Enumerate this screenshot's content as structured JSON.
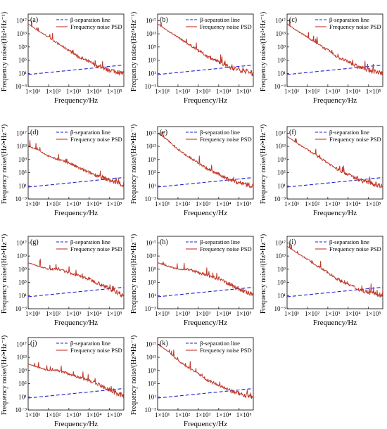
{
  "chart_data": [
    {
      "type": "line",
      "label": "(a)",
      "xlabel": "Frequency/Hz",
      "ylabel": "Frequency noise/(Hz²•Hz⁻¹)",
      "x_scale": "log",
      "y_scale": "log",
      "xlim": [
        10,
        500000
      ],
      "ylim": [
        0.001,
        1e+19
      ],
      "x_ticks": [
        "1×10¹",
        "1×10²",
        "1×10³",
        "1×10⁴",
        "1×10⁵"
      ],
      "y_ticks": [
        "10⁻³",
        "10¹",
        "10⁵",
        "10⁹",
        "10¹³",
        "10¹⁷"
      ],
      "legend": "top",
      "series": [
        {
          "name": "β-separation line",
          "color": "#2020d0",
          "style": "dashed",
          "x": [
            10,
            500000
          ],
          "y": [
            4.4,
            3400
          ]
        },
        {
          "name": "Frequency noise PSD",
          "color": "#c0392b",
          "style": "solid",
          "x": [
            10,
            30,
            100,
            300,
            1000,
            3000,
            10000,
            30000,
            100000,
            300000,
            500000
          ],
          "y": [
            1e+16,
            100000000000000.0,
            1000000000000.0,
            10000000000.0,
            100000000.0,
            1000000.0,
            30000.0,
            1000.0,
            100,
            20,
            10
          ]
        }
      ]
    },
    {
      "type": "line",
      "label": "(b)",
      "xlabel": "Frequency/Hz",
      "ylabel": "Frequency noise/(Hz²•Hz⁻¹)",
      "x_scale": "log",
      "y_scale": "log",
      "xlim": [
        10,
        500000
      ],
      "ylim": [
        0.001,
        1e+19
      ],
      "x_ticks": [
        "1×10¹",
        "1×10²",
        "1×10³",
        "1×10⁴",
        "1×10⁵"
      ],
      "y_ticks": [
        "10⁻³",
        "10¹",
        "10⁵",
        "10⁹",
        "10¹³",
        "10¹⁷"
      ],
      "legend": "top",
      "series": [
        {
          "name": "β-separation line",
          "color": "#2020d0",
          "style": "dashed",
          "x": [
            10,
            500000
          ],
          "y": [
            4.4,
            3400
          ]
        },
        {
          "name": "Frequency noise PSD",
          "color": "#c0392b",
          "style": "solid",
          "x": [
            10,
            30,
            100,
            300,
            1000,
            3000,
            10000,
            30000,
            100000,
            300000,
            500000
          ],
          "y": [
            1e+16,
            100000000000000.0,
            1000000000000.0,
            10000000000.0,
            100000000.0,
            1000000.0,
            30000.0,
            1000.0,
            100,
            20,
            10
          ]
        }
      ]
    },
    {
      "type": "line",
      "label": "(c)",
      "xlabel": "Frequency/Hz",
      "ylabel": "Frequency noise/(Hz²•Hz⁻¹)",
      "x_scale": "log",
      "y_scale": "log",
      "xlim": [
        10,
        500000
      ],
      "ylim": [
        0.001,
        1e+19
      ],
      "x_ticks": [
        "1×10¹",
        "1×10²",
        "1×10³",
        "1×10⁴",
        "1×10⁵"
      ],
      "y_ticks": [
        "10⁻³",
        "10¹",
        "10⁵",
        "10⁹",
        "10¹³",
        "10¹⁷"
      ],
      "legend": "top",
      "series": [
        {
          "name": "β-separation line",
          "color": "#2020d0",
          "style": "dashed",
          "x": [
            10,
            500000
          ],
          "y": [
            4.4,
            3400
          ]
        },
        {
          "name": "Frequency noise PSD",
          "color": "#c0392b",
          "style": "solid",
          "x": [
            10,
            30,
            100,
            300,
            1000,
            3000,
            10000,
            30000,
            100000,
            300000,
            500000
          ],
          "y": [
            1e+16,
            100000000000000.0,
            1000000000000.0,
            10000000000.0,
            100000000.0,
            1000000.0,
            30000.0,
            1000.0,
            100,
            20,
            10
          ]
        }
      ]
    },
    {
      "type": "line",
      "label": "(d)",
      "xlabel": "Frequency/Hz",
      "ylabel": "Frequency noise/(Hz²•Hz⁻¹)",
      "x_scale": "log",
      "y_scale": "log",
      "xlim": [
        10,
        500000
      ],
      "ylim": [
        0.001,
        1e+19
      ],
      "x_ticks": [
        "1×10¹",
        "1×10²",
        "1×10³",
        "1×10⁴",
        "1×10⁵"
      ],
      "y_ticks": [
        "10⁻³",
        "10¹",
        "10⁵",
        "10⁹",
        "10¹³",
        "10¹⁷"
      ],
      "legend": "top",
      "series": [
        {
          "name": "β-separation line",
          "color": "#2020d0",
          "style": "dashed",
          "x": [
            10,
            500000
          ],
          "y": [
            4.4,
            3400
          ]
        },
        {
          "name": "Frequency noise PSD",
          "color": "#c0392b",
          "style": "solid",
          "x": [
            10,
            30,
            100,
            300,
            1000,
            3000,
            10000,
            30000,
            100000,
            300000,
            500000
          ],
          "y": [
            10000000000000.0,
            1000000000000.0,
            10000000000.0,
            1000000000.0,
            100000000.0,
            3000000.0,
            100000.0,
            10000.0,
            500,
            50,
            10
          ]
        }
      ]
    },
    {
      "type": "line",
      "label": "(e)",
      "xlabel": "Frequency/Hz",
      "ylabel": "Frequency noise/(Hz²•Hz⁻¹)",
      "x_scale": "log",
      "y_scale": "log",
      "xlim": [
        10,
        500000
      ],
      "ylim": [
        0.001,
        1e+19
      ],
      "x_ticks": [
        "1×10¹",
        "1×10²",
        "1×10³",
        "1×10⁴",
        "1×10⁵"
      ],
      "y_ticks": [
        "10⁻³",
        "10¹",
        "10⁵",
        "10⁹",
        "10¹³",
        "10¹⁷"
      ],
      "legend": "top",
      "series": [
        {
          "name": "β-separation line",
          "color": "#2020d0",
          "style": "dashed",
          "x": [
            10,
            500000
          ],
          "y": [
            4.4,
            3400
          ]
        },
        {
          "name": "Frequency noise PSD",
          "color": "#c0392b",
          "style": "solid",
          "x": [
            10,
            30,
            100,
            300,
            1000,
            3000,
            10000,
            30000,
            100000,
            300000,
            500000
          ],
          "y": [
            1e+17,
            1000000000000000.0,
            1000000000000.0,
            10000000000.0,
            100000000.0,
            1000000.0,
            30000.0,
            1000.0,
            100,
            20,
            10
          ]
        }
      ]
    },
    {
      "type": "line",
      "label": "(f)",
      "xlabel": "Frequency/Hz",
      "ylabel": "Frequency noise/(Hz²•Hz⁻¹)",
      "x_scale": "log",
      "y_scale": "log",
      "xlim": [
        10,
        500000
      ],
      "ylim": [
        0.001,
        1e+19
      ],
      "x_ticks": [
        "1×10¹",
        "1×10²",
        "1×10³",
        "1×10⁴",
        "1×10⁵"
      ],
      "y_ticks": [
        "10⁻³",
        "10¹",
        "10⁵",
        "10⁹",
        "10¹³",
        "10¹⁷"
      ],
      "legend": "top",
      "series": [
        {
          "name": "β-separation line",
          "color": "#2020d0",
          "style": "dashed",
          "x": [
            10,
            500000
          ],
          "y": [
            4.4,
            3400
          ]
        },
        {
          "name": "Frequency noise PSD",
          "color": "#c0392b",
          "style": "solid",
          "x": [
            10,
            30,
            100,
            300,
            1000,
            3000,
            10000,
            30000,
            100000,
            300000,
            500000
          ],
          "y": [
            1e+16,
            100000000000000.0,
            1000000000000.0,
            10000000000.0,
            100000000.0,
            1000000.0,
            30000.0,
            1000.0,
            100,
            20,
            10
          ]
        }
      ]
    },
    {
      "type": "line",
      "label": "(g)",
      "xlabel": "Frequency/Hz",
      "ylabel": "Frequency noise/(Hz²•Hz⁻¹)",
      "x_scale": "log",
      "y_scale": "log",
      "xlim": [
        10,
        500000
      ],
      "ylim": [
        0.001,
        1e+19
      ],
      "x_ticks": [
        "1×10¹",
        "1×10²",
        "1×10³",
        "1×10⁴",
        "1×10⁵"
      ],
      "y_ticks": [
        "10⁻³",
        "10¹",
        "10⁵",
        "10⁹",
        "10¹³",
        "10¹⁷"
      ],
      "legend": "top",
      "series": [
        {
          "name": "β-separation line",
          "color": "#2020d0",
          "style": "dashed",
          "x": [
            10,
            500000
          ],
          "y": [
            4.4,
            3400
          ]
        },
        {
          "name": "Frequency noise PSD",
          "color": "#c0392b",
          "style": "solid",
          "x": [
            10,
            30,
            100,
            300,
            1000,
            3000,
            10000,
            30000,
            100000,
            300000,
            500000
          ],
          "y": [
            100000000000.0,
            10000000000.0,
            1000000000.0,
            1000000000.0,
            100000000.0,
            10000000.0,
            1000000.0,
            50000.0,
            1000.0,
            50,
            10
          ]
        }
      ]
    },
    {
      "type": "line",
      "label": "(h)",
      "xlabel": "Frequency/Hz",
      "ylabel": "Frequency noise/(Hz²•Hz⁻¹)",
      "x_scale": "log",
      "y_scale": "log",
      "xlim": [
        10,
        500000
      ],
      "ylim": [
        0.001,
        1e+19
      ],
      "x_ticks": [
        "1×10¹",
        "1×10²",
        "1×10³",
        "1×10⁴",
        "1×10⁵"
      ],
      "y_ticks": [
        "10⁻³",
        "10¹",
        "10⁵",
        "10⁹",
        "10¹³",
        "10¹⁷"
      ],
      "legend": "top",
      "series": [
        {
          "name": "β-separation line",
          "color": "#2020d0",
          "style": "dashed",
          "x": [
            10,
            500000
          ],
          "y": [
            4.4,
            3400
          ]
        },
        {
          "name": "Frequency noise PSD",
          "color": "#c0392b",
          "style": "solid",
          "x": [
            10,
            30,
            100,
            300,
            1000,
            3000,
            10000,
            30000,
            100000,
            300000,
            500000
          ],
          "y": [
            100000000000.0,
            10000000000.0,
            1000000000.0,
            1000000000.0,
            100000000.0,
            10000000.0,
            1000000.0,
            50000.0,
            1000.0,
            50,
            10
          ]
        }
      ]
    },
    {
      "type": "line",
      "label": "(i)",
      "xlabel": "Frequency/Hz",
      "ylabel": "Frequency noise/(Hz²•Hz⁻¹)",
      "x_scale": "log",
      "y_scale": "log",
      "xlim": [
        10,
        500000
      ],
      "ylim": [
        0.001,
        1e+19
      ],
      "x_ticks": [
        "1×10¹",
        "1×10²",
        "1×10³",
        "1×10⁴",
        "1×10⁵"
      ],
      "y_ticks": [
        "10⁻³",
        "10¹",
        "10⁵",
        "10⁹",
        "10¹³",
        "10¹⁷"
      ],
      "legend": "top",
      "series": [
        {
          "name": "β-separation line",
          "color": "#2020d0",
          "style": "dashed",
          "x": [
            10,
            500000
          ],
          "y": [
            4.4,
            3400
          ]
        },
        {
          "name": "Frequency noise PSD",
          "color": "#c0392b",
          "style": "solid",
          "x": [
            10,
            30,
            100,
            300,
            1000,
            3000,
            10000,
            30000,
            100000,
            300000,
            500000
          ],
          "y": [
            1e+16,
            100000000000000.0,
            1000000000000.0,
            10000000000.0,
            100000000.0,
            1000000.0,
            30000.0,
            1000.0,
            100,
            20,
            10
          ]
        }
      ]
    },
    {
      "type": "line",
      "label": "(j)",
      "xlabel": "Frequency/Hz",
      "ylabel": "Frequency noise/(Hz²•Hz⁻¹)",
      "x_scale": "log",
      "y_scale": "log",
      "xlim": [
        10,
        500000
      ],
      "ylim": [
        0.001,
        1e+19
      ],
      "x_ticks": [
        "1×10¹",
        "1×10²",
        "1×10³",
        "1×10⁴",
        "1×10⁵"
      ],
      "y_ticks": [
        "10⁻³",
        "10¹",
        "10⁵",
        "10⁹",
        "10¹³",
        "10¹⁷"
      ],
      "legend": "top",
      "series": [
        {
          "name": "β-separation line",
          "color": "#2020d0",
          "style": "dashed",
          "x": [
            10,
            500000
          ],
          "y": [
            4.4,
            3400
          ]
        },
        {
          "name": "Frequency noise PSD",
          "color": "#c0392b",
          "style": "solid",
          "x": [
            10,
            30,
            100,
            300,
            1000,
            3000,
            10000,
            30000,
            100000,
            300000,
            500000
          ],
          "y": [
            100000000000.0,
            10000000000.0,
            1000000000.0,
            1000000000.0,
            100000000.0,
            10000000.0,
            1000000.0,
            50000.0,
            1000.0,
            50,
            10
          ]
        }
      ]
    },
    {
      "type": "line",
      "label": "(k)",
      "xlabel": "Frequency/Hz",
      "ylabel": "Frequency noise/(Hz²•Hz⁻¹)",
      "x_scale": "log",
      "y_scale": "log",
      "xlim": [
        10,
        500000
      ],
      "ylim": [
        0.001,
        1e+19
      ],
      "x_ticks": [
        "1×10¹",
        "1×10²",
        "1×10³",
        "1×10⁴",
        "1×10⁵"
      ],
      "y_ticks": [
        "10⁻³",
        "10¹",
        "10⁵",
        "10⁹",
        "10¹³",
        "10¹⁷"
      ],
      "legend": "top",
      "series": [
        {
          "name": "β-separation line",
          "color": "#2020d0",
          "style": "dashed",
          "x": [
            10,
            500000
          ],
          "y": [
            4.4,
            3400
          ]
        },
        {
          "name": "Frequency noise PSD",
          "color": "#c0392b",
          "style": "solid",
          "x": [
            10,
            30,
            100,
            300,
            1000,
            3000,
            10000,
            30000,
            100000,
            300000,
            500000
          ],
          "y": [
            1e+17,
            1000000000000000.0,
            1000000000000.0,
            10000000000.0,
            100000000.0,
            1000000.0,
            30000.0,
            1000.0,
            100,
            20,
            10
          ]
        }
      ]
    }
  ]
}
